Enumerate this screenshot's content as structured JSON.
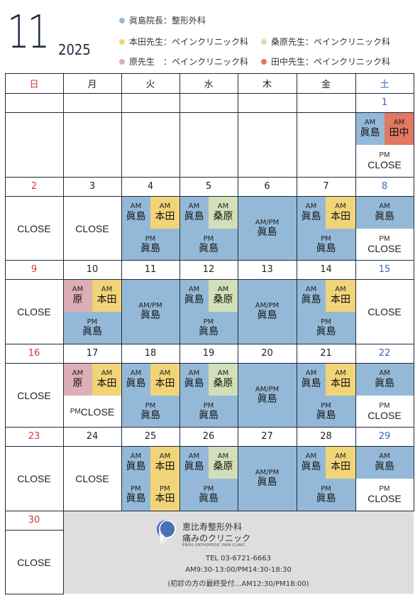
{
  "header": {
    "month": "11",
    "year": "2025"
  },
  "legend": [
    {
      "text": "眞島院長：整形外科",
      "color": "#94b9d8"
    },
    {
      "text": "本田先生：ペインクリニック科",
      "color": "#f2d478"
    },
    {
      "text": "桑原先生：ペインクリニック科",
      "color": "#d3dfb9"
    },
    {
      "text": "原先生　：ペインクリニック科",
      "color": "#ddaeb6"
    },
    {
      "text": "田中先生：ペインクリニック科",
      "color": "#e07862"
    }
  ],
  "weekdays": [
    "日",
    "月",
    "火",
    "水",
    "木",
    "金",
    "土"
  ],
  "weekday_colors": {
    "sun": "#d23a3a",
    "sat": "#3a66b8",
    "normal": "#222222"
  },
  "labels": {
    "am": "AM",
    "pm": "PM",
    "ampm": "AM/PM",
    "close": "CLOSE"
  },
  "doctors": {
    "majima": "眞島",
    "honda": "本田",
    "kuwabara": "桑原",
    "hara": "原",
    "tanaka": "田中"
  },
  "weeks": [
    [
      "",
      "",
      "",
      "",
      "",
      "",
      "1"
    ],
    [
      "2",
      "3",
      "4",
      "5",
      "6",
      "7",
      "8"
    ],
    [
      "9",
      "10",
      "11",
      "12",
      "13",
      "14",
      "15"
    ],
    [
      "16",
      "17",
      "18",
      "19",
      "20",
      "21",
      "22"
    ],
    [
      "23",
      "24",
      "25",
      "26",
      "27",
      "28",
      "29"
    ],
    [
      "30",
      "",
      "",
      "",
      "",
      "",
      ""
    ]
  ],
  "footer": {
    "clinic_name": "恵比寿整形外科",
    "clinic_sub": "痛みのクリニック",
    "clinic_en": "EBISU ORTHOPEDIC PAIN CLINIC",
    "tel": "TEL 03-6721-6663",
    "hours": "AM9:30-13:00/PM14:30-18:30",
    "note": "(初診の方の最終受付…AM12:30/PM18:00)"
  }
}
